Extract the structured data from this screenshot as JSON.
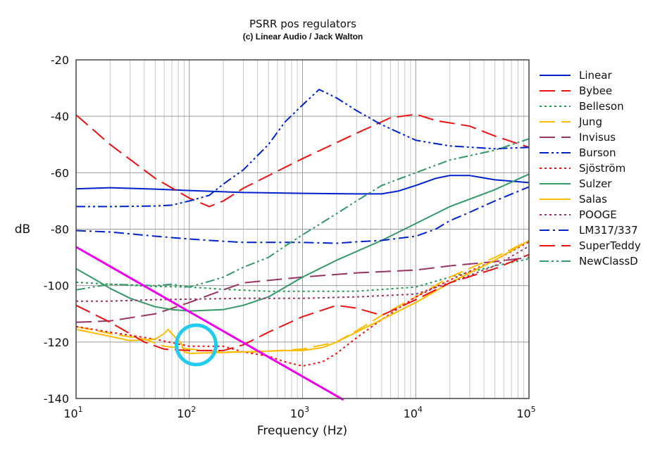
{
  "chart_data": {
    "type": "line",
    "title": "PSRR pos regulators",
    "subtitle": "(c) Linear Audio / Jack Walton",
    "xlabel": "Frequency (Hz)",
    "ylabel": "dB",
    "xscale": "log",
    "xlim": [
      10,
      100000
    ],
    "ylim": [
      -140,
      -20
    ],
    "xticks": [
      {
        "base": "10",
        "exp": "1",
        "v": 10
      },
      {
        "base": "10",
        "exp": "2",
        "v": 100
      },
      {
        "base": "10",
        "exp": "3",
        "v": 1000
      },
      {
        "base": "10",
        "exp": "4",
        "v": 10000
      },
      {
        "base": "10",
        "exp": "5",
        "v": 100000
      }
    ],
    "yticks": [
      "-20",
      "-40",
      "-60",
      "-80",
      "-100",
      "-120",
      "-140"
    ],
    "grid": true,
    "legend_position": "right",
    "series": [
      {
        "name": "Linear",
        "color": "#0022cc",
        "dash": "solid",
        "points": [
          [
            10,
            -65.7
          ],
          [
            20,
            -65.3
          ],
          [
            50,
            -65.8
          ],
          [
            100,
            -66.3
          ],
          [
            300,
            -67
          ],
          [
            1000,
            -67.3
          ],
          [
            3000,
            -67.5
          ],
          [
            5000,
            -67.5
          ],
          [
            7000,
            -66.5
          ],
          [
            10000,
            -64.5
          ],
          [
            15000,
            -62
          ],
          [
            20000,
            -61
          ],
          [
            30000,
            -61
          ],
          [
            50000,
            -62.5
          ],
          [
            100000,
            -63.5
          ]
        ]
      },
      {
        "name": "Bybee",
        "color": "#ee1111",
        "dash": "long-dash",
        "points": [
          [
            10,
            -39.5
          ],
          [
            20,
            -50
          ],
          [
            50,
            -62
          ],
          [
            100,
            -69
          ],
          [
            150,
            -72
          ],
          [
            200,
            -70
          ],
          [
            300,
            -65.5
          ],
          [
            1000,
            -55
          ],
          [
            3000,
            -46
          ],
          [
            6000,
            -40.5
          ],
          [
            10000,
            -39.3
          ],
          [
            15000,
            -41.5
          ],
          [
            30000,
            -43.5
          ],
          [
            50000,
            -47
          ],
          [
            100000,
            -51
          ]
        ]
      },
      {
        "name": "Belleson",
        "color": "#229955",
        "dash": "dot",
        "points": [
          [
            10,
            -98.8
          ],
          [
            20,
            -99.5
          ],
          [
            50,
            -100.3
          ],
          [
            100,
            -100.5
          ],
          [
            200,
            -101.3
          ],
          [
            500,
            -102
          ],
          [
            1000,
            -102
          ],
          [
            3000,
            -102
          ],
          [
            10000,
            -100.5
          ],
          [
            20000,
            -97
          ],
          [
            50000,
            -93
          ],
          [
            100000,
            -90.5
          ]
        ]
      },
      {
        "name": "Jung",
        "color": "#ffbb00",
        "dash": "long-dash",
        "points": [
          [
            10,
            -114.5
          ],
          [
            20,
            -117
          ],
          [
            40,
            -119
          ],
          [
            60,
            -121.5
          ],
          [
            100,
            -122.5
          ],
          [
            200,
            -123.5
          ],
          [
            400,
            -123.5
          ],
          [
            1000,
            -122.5
          ],
          [
            2000,
            -120
          ],
          [
            3000,
            -116
          ],
          [
            5000,
            -110.5
          ],
          [
            10000,
            -104
          ],
          [
            20000,
            -97
          ],
          [
            50000,
            -90
          ],
          [
            100000,
            -84
          ]
        ]
      },
      {
        "name": "Invisus",
        "color": "#993366",
        "dash": "long-dash",
        "points": [
          [
            10,
            -113
          ],
          [
            20,
            -112.5
          ],
          [
            50,
            -110
          ],
          [
            100,
            -106
          ],
          [
            200,
            -101.5
          ],
          [
            300,
            -99
          ],
          [
            1000,
            -97
          ],
          [
            3000,
            -95.5
          ],
          [
            10000,
            -94.5
          ],
          [
            20000,
            -93
          ],
          [
            50000,
            -91.5
          ],
          [
            100000,
            -90
          ]
        ]
      },
      {
        "name": "Burson",
        "color": "#0022cc",
        "dash": "dash-dot-dot",
        "points": [
          [
            10,
            -72
          ],
          [
            20,
            -72
          ],
          [
            50,
            -71.8
          ],
          [
            70,
            -71.5
          ],
          [
            100,
            -70
          ],
          [
            150,
            -68
          ],
          [
            200,
            -64
          ],
          [
            300,
            -59
          ],
          [
            500,
            -50
          ],
          [
            700,
            -42
          ],
          [
            1000,
            -36
          ],
          [
            1400,
            -30.5
          ],
          [
            2000,
            -33.5
          ],
          [
            3000,
            -38
          ],
          [
            5000,
            -43
          ],
          [
            10000,
            -48.5
          ],
          [
            20000,
            -50.5
          ],
          [
            50000,
            -51.5
          ],
          [
            100000,
            -51
          ]
        ]
      },
      {
        "name": "Sjöström",
        "color": "#ee1111",
        "dash": "dot",
        "points": [
          [
            10,
            -114.5
          ],
          [
            20,
            -116.5
          ],
          [
            50,
            -119
          ],
          [
            100,
            -121.5
          ],
          [
            150,
            -121.5
          ],
          [
            200,
            -121.5
          ],
          [
            300,
            -123.5
          ],
          [
            500,
            -125
          ],
          [
            700,
            -127
          ],
          [
            1000,
            -128.5
          ],
          [
            1500,
            -127
          ],
          [
            2000,
            -124
          ],
          [
            3000,
            -118.5
          ],
          [
            5000,
            -112
          ],
          [
            10000,
            -104
          ],
          [
            20000,
            -98
          ],
          [
            50000,
            -91
          ],
          [
            100000,
            -84.5
          ]
        ]
      },
      {
        "name": "Sulzer",
        "color": "#339966",
        "dash": "solid",
        "points": [
          [
            10,
            -94
          ],
          [
            15,
            -98
          ],
          [
            20,
            -101
          ],
          [
            30,
            -104.5
          ],
          [
            50,
            -107.5
          ],
          [
            70,
            -108.5
          ],
          [
            100,
            -109
          ],
          [
            200,
            -108.5
          ],
          [
            300,
            -107
          ],
          [
            500,
            -104
          ],
          [
            1000,
            -97
          ],
          [
            2000,
            -91
          ],
          [
            5000,
            -84
          ],
          [
            10000,
            -78
          ],
          [
            20000,
            -72
          ],
          [
            50000,
            -66
          ],
          [
            100000,
            -60.5
          ]
        ]
      },
      {
        "name": "Salas",
        "color": "#ffbb00",
        "dash": "solid",
        "points": [
          [
            10,
            -115.5
          ],
          [
            20,
            -118
          ],
          [
            30,
            -119.5
          ],
          [
            50,
            -119
          ],
          [
            60,
            -117
          ],
          [
            65,
            -115.5
          ],
          [
            70,
            -117
          ],
          [
            85,
            -120.5
          ],
          [
            90,
            -123.5
          ],
          [
            100,
            -124
          ],
          [
            300,
            -123.5
          ],
          [
            700,
            -123
          ],
          [
            1000,
            -123
          ],
          [
            1500,
            -122
          ],
          [
            2000,
            -120
          ],
          [
            5000,
            -112
          ],
          [
            10000,
            -106
          ],
          [
            20000,
            -99
          ],
          [
            50000,
            -91
          ],
          [
            100000,
            -84
          ]
        ]
      },
      {
        "name": "POOGE",
        "color": "#993366",
        "dash": "dot",
        "points": [
          [
            10,
            -105.5
          ],
          [
            20,
            -105.5
          ],
          [
            50,
            -105
          ],
          [
            100,
            -104.8
          ],
          [
            300,
            -104.5
          ],
          [
            1000,
            -104.5
          ],
          [
            3000,
            -104
          ],
          [
            10000,
            -103
          ],
          [
            20000,
            -99
          ],
          [
            50000,
            -93
          ],
          [
            100000,
            -86
          ]
        ]
      },
      {
        "name": "LM317/337",
        "color": "#0022cc",
        "dash": "dash-dot",
        "points": [
          [
            10,
            -80.5
          ],
          [
            20,
            -81
          ],
          [
            50,
            -82.5
          ],
          [
            100,
            -83.5
          ],
          [
            200,
            -84.3
          ],
          [
            300,
            -84.7
          ],
          [
            1000,
            -84.7
          ],
          [
            2000,
            -85
          ],
          [
            3000,
            -84.5
          ],
          [
            5000,
            -84
          ],
          [
            10000,
            -82.5
          ],
          [
            15000,
            -80
          ],
          [
            20000,
            -77
          ],
          [
            30000,
            -74
          ],
          [
            50000,
            -70
          ],
          [
            100000,
            -65
          ]
        ]
      },
      {
        "name": "SuperTeddy",
        "color": "#ee1111",
        "dash": "long-dash",
        "points": [
          [
            10,
            -107
          ],
          [
            20,
            -113
          ],
          [
            40,
            -120
          ],
          [
            60,
            -122.5
          ],
          [
            100,
            -123
          ],
          [
            200,
            -123
          ],
          [
            300,
            -121
          ],
          [
            500,
            -116.5
          ],
          [
            1000,
            -111
          ],
          [
            2000,
            -107
          ],
          [
            3000,
            -108
          ],
          [
            5000,
            -110.5
          ],
          [
            10000,
            -105
          ],
          [
            20000,
            -99
          ],
          [
            50000,
            -94
          ],
          [
            100000,
            -89
          ]
        ]
      },
      {
        "name": "NewClassD",
        "color": "#339966",
        "dash": "dash-dot-dot",
        "points": [
          [
            10,
            -101.5
          ],
          [
            20,
            -99.5
          ],
          [
            50,
            -100
          ],
          [
            70,
            -99.5
          ],
          [
            100,
            -100.5
          ],
          [
            150,
            -98.5
          ],
          [
            200,
            -97
          ],
          [
            300,
            -93.5
          ],
          [
            500,
            -90
          ],
          [
            700,
            -86
          ],
          [
            1000,
            -82
          ],
          [
            2000,
            -74.5
          ],
          [
            3000,
            -70
          ],
          [
            5000,
            -64.5
          ],
          [
            10000,
            -60
          ],
          [
            20000,
            -55.5
          ],
          [
            50000,
            -52
          ],
          [
            100000,
            -48
          ]
        ]
      }
    ],
    "annotations": [
      {
        "type": "line",
        "color": "#ee00ee",
        "from": [
          10,
          -86.3
        ],
        "to": [
          2300,
          -140.5
        ]
      },
      {
        "type": "circle",
        "color": "#22ccee",
        "center": [
          115,
          -121
        ]
      }
    ]
  }
}
